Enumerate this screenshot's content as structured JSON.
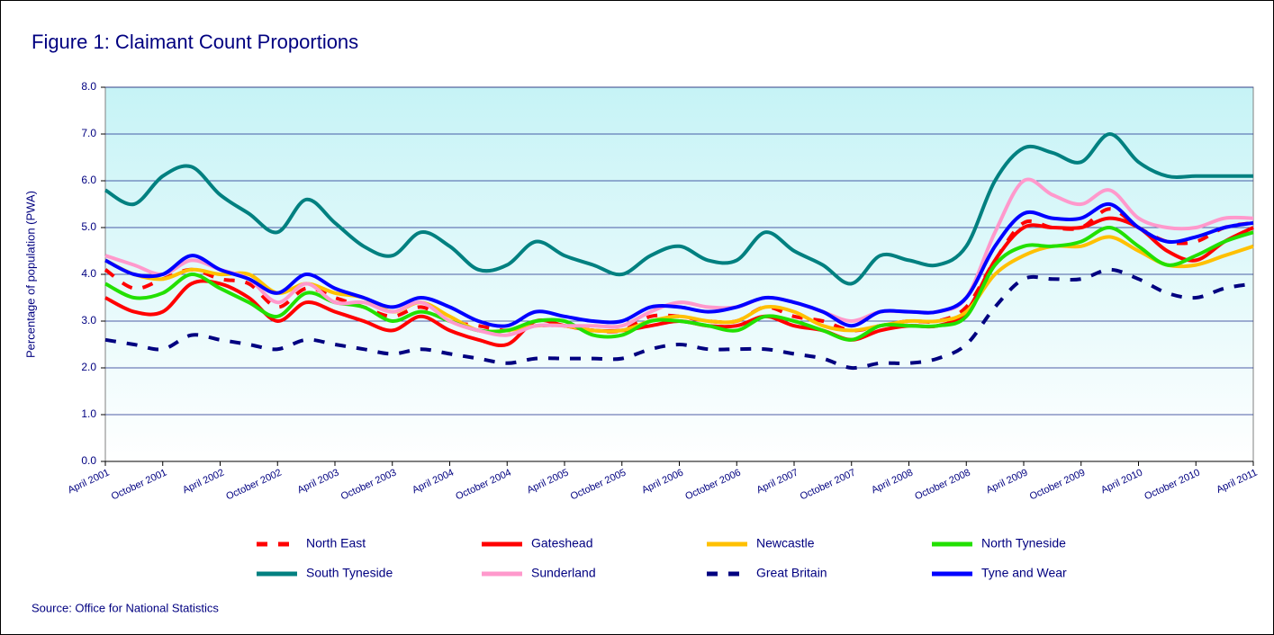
{
  "chart_data": {
    "type": "line",
    "title": "Figure 1: Claimant Count Proportions",
    "y_label": "Percentage of population (PWA)",
    "source": "Source: Office for National Statistics",
    "categories": [
      "April 2001",
      null,
      "October 2001",
      null,
      "April 2002",
      null,
      "October 2002",
      null,
      "April 2003",
      null,
      "October 2003",
      null,
      "April 2004",
      null,
      "October 2004",
      null,
      "April 2005",
      null,
      "October 2005",
      null,
      "April 2006",
      null,
      "October 2006",
      null,
      "April 2007",
      null,
      "October 2007",
      null,
      "April 2008",
      null,
      "October 2008",
      null,
      "April 2009",
      null,
      "October 2009",
      null,
      "April 2010",
      null,
      "October 2010",
      null,
      "April 2011"
    ],
    "ylim": [
      0,
      8
    ],
    "yticks": [
      {
        "value": 0,
        "label": "0.0"
      },
      {
        "value": 1,
        "label": "1.0"
      },
      {
        "value": 2,
        "label": "2.0"
      },
      {
        "value": 3,
        "label": "3.0"
      },
      {
        "value": 4,
        "label": "4.0"
      },
      {
        "value": 5,
        "label": "5.0"
      },
      {
        "value": 6,
        "label": "6.0"
      },
      {
        "value": 7,
        "label": "7.0"
      },
      {
        "value": 8,
        "label": "8.0"
      }
    ],
    "grid": true,
    "legend": "bottom",
    "series": [
      {
        "name": "North East",
        "color": "#ff0000",
        "dashed": true,
        "values": [
          4.1,
          3.7,
          3.9,
          4.1,
          3.9,
          3.8,
          3.3,
          3.7,
          3.5,
          3.3,
          3.1,
          3.3,
          3.0,
          2.9,
          2.8,
          2.9,
          2.9,
          2.8,
          2.8,
          3.1,
          3.1,
          3.0,
          3.0,
          3.3,
          3.1,
          3.0,
          2.8,
          2.9,
          3.0,
          3.0,
          3.3,
          4.3,
          5.1,
          5.0,
          5.0,
          5.4,
          5.0,
          4.7,
          4.7,
          5.0,
          5.1
        ]
      },
      {
        "name": "Gateshead",
        "color": "#ff0000",
        "values": [
          3.5,
          3.2,
          3.2,
          3.8,
          3.8,
          3.5,
          3.0,
          3.4,
          3.2,
          3.0,
          2.8,
          3.1,
          2.8,
          2.6,
          2.5,
          3.0,
          2.9,
          2.8,
          2.8,
          2.9,
          3.0,
          2.9,
          2.9,
          3.1,
          2.9,
          2.8,
          2.6,
          2.8,
          2.9,
          2.9,
          3.2,
          4.3,
          5.0,
          5.0,
          5.0,
          5.2,
          5.0,
          4.5,
          4.3,
          4.7,
          5.0
        ]
      },
      {
        "name": "Newcastle",
        "color": "#ffc000",
        "values": [
          4.3,
          4.0,
          3.9,
          4.1,
          4.0,
          4.0,
          3.6,
          3.8,
          3.6,
          3.5,
          3.2,
          3.4,
          3.1,
          2.8,
          2.8,
          2.9,
          2.9,
          2.8,
          2.8,
          3.0,
          3.1,
          3.0,
          3.0,
          3.3,
          3.2,
          2.9,
          2.8,
          2.9,
          3.0,
          3.0,
          3.2,
          4.0,
          4.4,
          4.6,
          4.6,
          4.8,
          4.5,
          4.2,
          4.2,
          4.4,
          4.6
        ]
      },
      {
        "name": "North Tyneside",
        "color": "#22e000",
        "values": [
          3.8,
          3.5,
          3.6,
          4.0,
          3.7,
          3.4,
          3.1,
          3.6,
          3.4,
          3.3,
          3.0,
          3.2,
          3.0,
          2.8,
          2.8,
          3.0,
          3.0,
          2.7,
          2.7,
          3.0,
          3.0,
          2.9,
          2.8,
          3.1,
          3.0,
          2.8,
          2.6,
          2.9,
          2.9,
          2.9,
          3.1,
          4.2,
          4.6,
          4.6,
          4.7,
          5.0,
          4.6,
          4.2,
          4.4,
          4.7,
          4.9
        ]
      },
      {
        "name": "South Tyneside",
        "color": "#008080",
        "values": [
          5.8,
          5.5,
          6.1,
          6.3,
          5.7,
          5.3,
          4.9,
          5.6,
          5.1,
          4.6,
          4.4,
          4.9,
          4.6,
          4.1,
          4.2,
          4.7,
          4.4,
          4.2,
          4.0,
          4.4,
          4.6,
          4.3,
          4.3,
          4.9,
          4.5,
          4.2,
          3.8,
          4.4,
          4.3,
          4.2,
          4.6,
          6.0,
          6.7,
          6.6,
          6.4,
          7.0,
          6.4,
          6.1,
          6.1,
          6.1,
          6.1
        ]
      },
      {
        "name": "Sunderland",
        "color": "#ff99cc",
        "values": [
          4.4,
          4.2,
          4.0,
          4.3,
          4.1,
          3.9,
          3.4,
          3.8,
          3.4,
          3.4,
          3.2,
          3.4,
          3.0,
          2.8,
          2.7,
          2.9,
          2.9,
          2.9,
          2.9,
          3.2,
          3.4,
          3.3,
          3.3,
          3.5,
          3.4,
          3.2,
          3.0,
          3.2,
          3.2,
          3.2,
          3.5,
          4.9,
          6.0,
          5.7,
          5.5,
          5.8,
          5.2,
          5.0,
          5.0,
          5.2,
          5.2
        ]
      },
      {
        "name": "Great Britain",
        "color": "#000080",
        "dashed": true,
        "values": [
          2.6,
          2.5,
          2.4,
          2.7,
          2.6,
          2.5,
          2.4,
          2.6,
          2.5,
          2.4,
          2.3,
          2.4,
          2.3,
          2.2,
          2.1,
          2.2,
          2.2,
          2.2,
          2.2,
          2.4,
          2.5,
          2.4,
          2.4,
          2.4,
          2.3,
          2.2,
          2.0,
          2.1,
          2.1,
          2.2,
          2.5,
          3.3,
          3.9,
          3.9,
          3.9,
          4.1,
          3.9,
          3.6,
          3.5,
          3.7,
          3.8
        ]
      },
      {
        "name": "Tyne and Wear",
        "color": "#0000ff",
        "values": [
          4.3,
          4.0,
          4.0,
          4.4,
          4.1,
          3.9,
          3.6,
          4.0,
          3.7,
          3.5,
          3.3,
          3.5,
          3.3,
          3.0,
          2.9,
          3.2,
          3.1,
          3.0,
          3.0,
          3.3,
          3.3,
          3.2,
          3.3,
          3.5,
          3.4,
          3.2,
          2.9,
          3.2,
          3.2,
          3.2,
          3.5,
          4.6,
          5.3,
          5.2,
          5.2,
          5.5,
          5.0,
          4.7,
          4.8,
          5.0,
          5.1
        ]
      }
    ]
  }
}
